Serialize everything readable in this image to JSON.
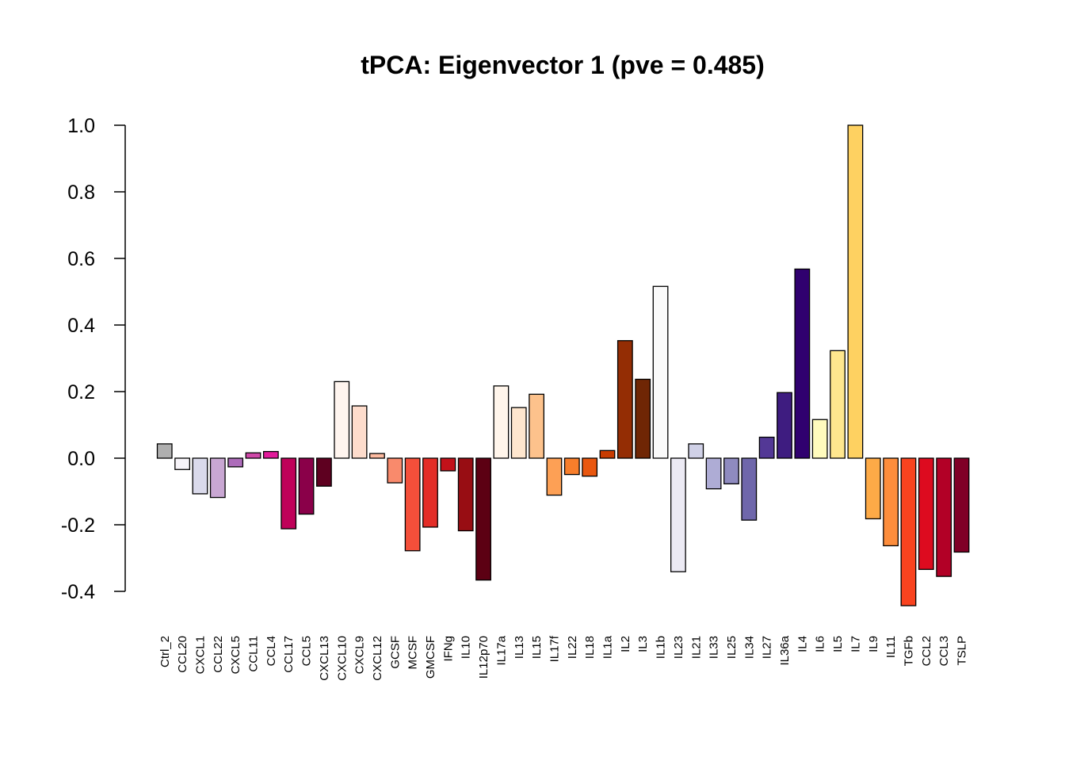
{
  "chart_data": {
    "type": "bar",
    "title": "tPCA: Eigenvector 1 (pve = 0.485)",
    "xlabel": "",
    "ylabel": "",
    "ylim": [
      -0.4,
      1.0
    ],
    "yticks": [
      "1.0",
      "0.8",
      "0.6",
      "0.4",
      "0.2",
      "0.0",
      "-0.2",
      "-0.4"
    ],
    "grid": false,
    "legend": "none",
    "categories": [
      "Ctrl_2",
      "CCL20",
      "CXCL1",
      "CCL22",
      "CXCL5",
      "CCL11",
      "CCL4",
      "CCL17",
      "CCL5",
      "CXCL13",
      "CXCL10",
      "CXCL9",
      "CXCL12",
      "GCSF",
      "MCSF",
      "GMCSF",
      "IFNg",
      "IL10",
      "IL12p70",
      "IL17a",
      "IL13",
      "IL15",
      "IL17f",
      "IL22",
      "IL18",
      "IL1a",
      "IL2",
      "IL3",
      "IL1b",
      "IL23",
      "IL21",
      "IL33",
      "IL25",
      "IL34",
      "IL27",
      "IL36a",
      "IL4",
      "IL6",
      "IL5",
      "IL7",
      "IL9",
      "IL11",
      "TGFb",
      "CCL2",
      "CCL3",
      "TSLP"
    ],
    "values": [
      0.043,
      -0.034,
      -0.107,
      -0.118,
      -0.026,
      0.016,
      0.02,
      -0.212,
      -0.168,
      -0.084,
      0.23,
      0.157,
      0.014,
      -0.074,
      -0.278,
      -0.207,
      -0.038,
      -0.218,
      -0.366,
      0.217,
      0.152,
      0.192,
      -0.111,
      -0.049,
      -0.054,
      0.023,
      0.353,
      0.237,
      0.516,
      -0.341,
      0.043,
      -0.092,
      -0.077,
      -0.186,
      0.063,
      0.197,
      0.568,
      0.116,
      0.323,
      1.0,
      -0.182,
      -0.263,
      -0.443,
      -0.334,
      -0.355,
      -0.282
    ],
    "colors": [
      "#AFAFAF",
      "#F7F4F9",
      "#DADAEB",
      "#C9A7D3",
      "#AD6CBA",
      "#CF48A8",
      "#E2199A",
      "#BF0159",
      "#8A0049",
      "#5E0020",
      "#FFF5EF",
      "#FDDCCC",
      "#FCBAA0",
      "#F98A6C",
      "#F44F3A",
      "#E32D27",
      "#C3111A",
      "#980D13",
      "#5C0013",
      "#FFF5EB",
      "#FEE6CE",
      "#FDC28C",
      "#FDA055",
      "#F87E2B",
      "#E9570F",
      "#C73C02",
      "#942D04",
      "#6F2605",
      "#FAFAFA",
      "#ECEAF4",
      "#D0D1E7",
      "#AEACD5",
      "#8F8BC0",
      "#6F67AB",
      "#533896",
      "#3E1C80",
      "#30006F",
      "#FFFBBD",
      "#FEE68E",
      "#FED161",
      "#FDAA47",
      "#FD8D3C",
      "#F9431F",
      "#DD0B1F",
      "#B20026",
      "#800026"
    ]
  }
}
